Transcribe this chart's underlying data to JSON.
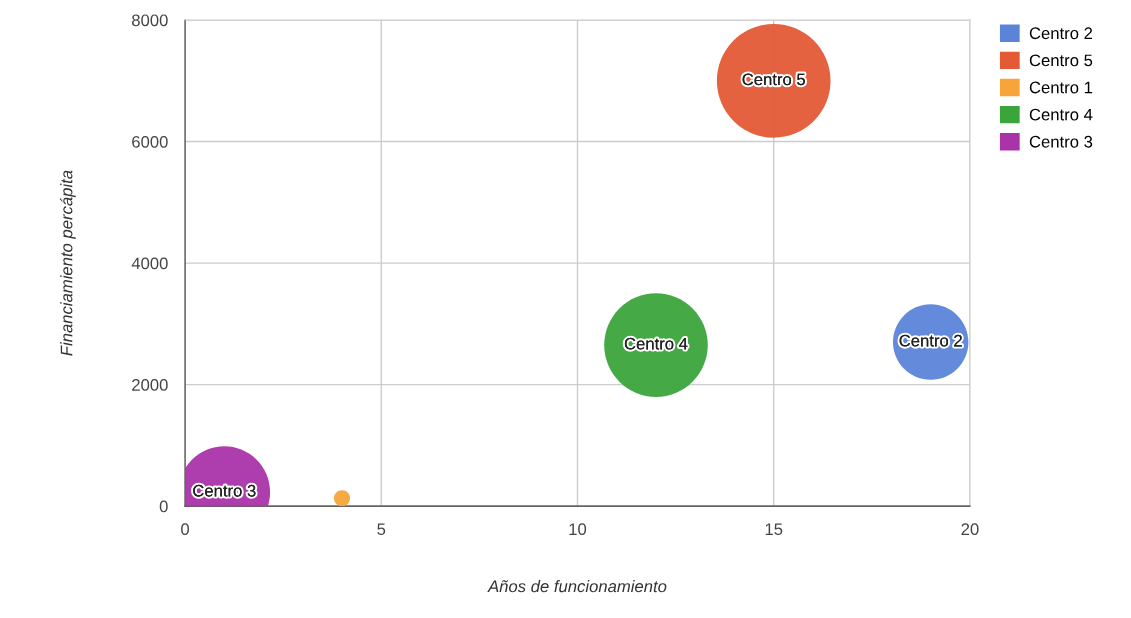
{
  "chart_data": {
    "type": "bubble",
    "xlabel": "Años de funcionamiento",
    "ylabel": "Financiamiento percápita",
    "xlim": [
      0,
      20
    ],
    "xticks": [
      0,
      5,
      10,
      15,
      20
    ],
    "ylim": [
      0,
      8000
    ],
    "yticks": [
      0,
      2000,
      4000,
      6000,
      8000
    ],
    "grid": true,
    "legend": "top right",
    "annotations": [
      {
        "text": "Centro 2",
        "x": 19,
        "y": 2700
      },
      {
        "text": "Centro 5",
        "x": 15,
        "y": 7000
      },
      {
        "text": "Centro 4",
        "x": 12,
        "y": 2650
      },
      {
        "text": "Centro 3",
        "x": 1,
        "y": 230
      }
    ],
    "series": [
      {
        "name": "Centro 2",
        "color": "#5b84d9",
        "x": [
          19
        ],
        "values": [
          2700
        ],
        "sizes": [
          0.44
        ]
      },
      {
        "name": "Centro 5",
        "color": "#e35a35",
        "x": [
          15
        ],
        "values": [
          7000
        ],
        "sizes": [
          1
        ]
      },
      {
        "name": "Centro 1",
        "color": "#f7a43a",
        "x": [
          4
        ],
        "values": [
          130
        ],
        "sizes": [
          0.02
        ]
      },
      {
        "name": "Centro 4",
        "color": "#3ba53b",
        "x": [
          12
        ],
        "values": [
          2650
        ],
        "sizes": [
          0.83
        ]
      },
      {
        "name": "Centro 3",
        "color": "#aa33aa",
        "x": [
          1
        ],
        "values": [
          230
        ],
        "sizes": [
          0.65
        ]
      }
    ]
  }
}
